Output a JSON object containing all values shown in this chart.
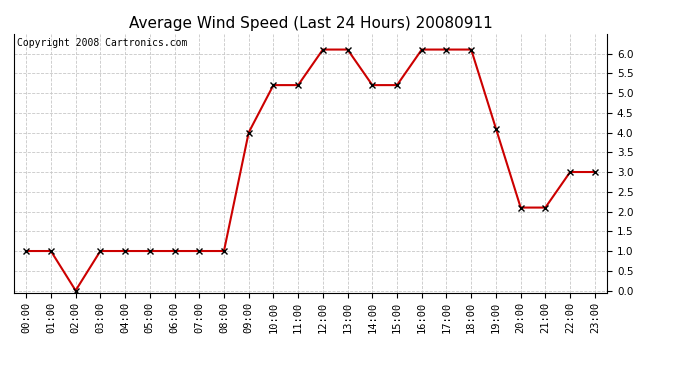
{
  "title": "Average Wind Speed (Last 24 Hours) 20080911",
  "copyright": "Copyright 2008 Cartronics.com",
  "x_labels": [
    "00:00",
    "01:00",
    "02:00",
    "03:00",
    "04:00",
    "05:00",
    "06:00",
    "07:00",
    "08:00",
    "09:00",
    "10:00",
    "11:00",
    "12:00",
    "13:00",
    "14:00",
    "15:00",
    "16:00",
    "17:00",
    "18:00",
    "19:00",
    "20:00",
    "21:00",
    "22:00",
    "23:00"
  ],
  "y_values": [
    1.0,
    1.0,
    0.0,
    1.0,
    1.0,
    1.0,
    1.0,
    1.0,
    1.0,
    4.0,
    5.2,
    5.2,
    6.1,
    6.1,
    5.2,
    5.2,
    6.1,
    6.1,
    6.1,
    4.1,
    2.1,
    2.1,
    3.0,
    3.0
  ],
  "line_color": "#cc0000",
  "marker": "x",
  "marker_color": "#000000",
  "background_color": "#ffffff",
  "plot_bg_color": "#ffffff",
  "grid_color": "#c8c8c8",
  "ylim": [
    -0.05,
    6.5
  ],
  "yticks": [
    0.0,
    0.5,
    1.0,
    1.5,
    2.0,
    2.5,
    3.0,
    3.5,
    4.0,
    4.5,
    5.0,
    5.5,
    6.0
  ],
  "title_fontsize": 11,
  "copyright_fontsize": 7,
  "tick_fontsize": 7.5
}
